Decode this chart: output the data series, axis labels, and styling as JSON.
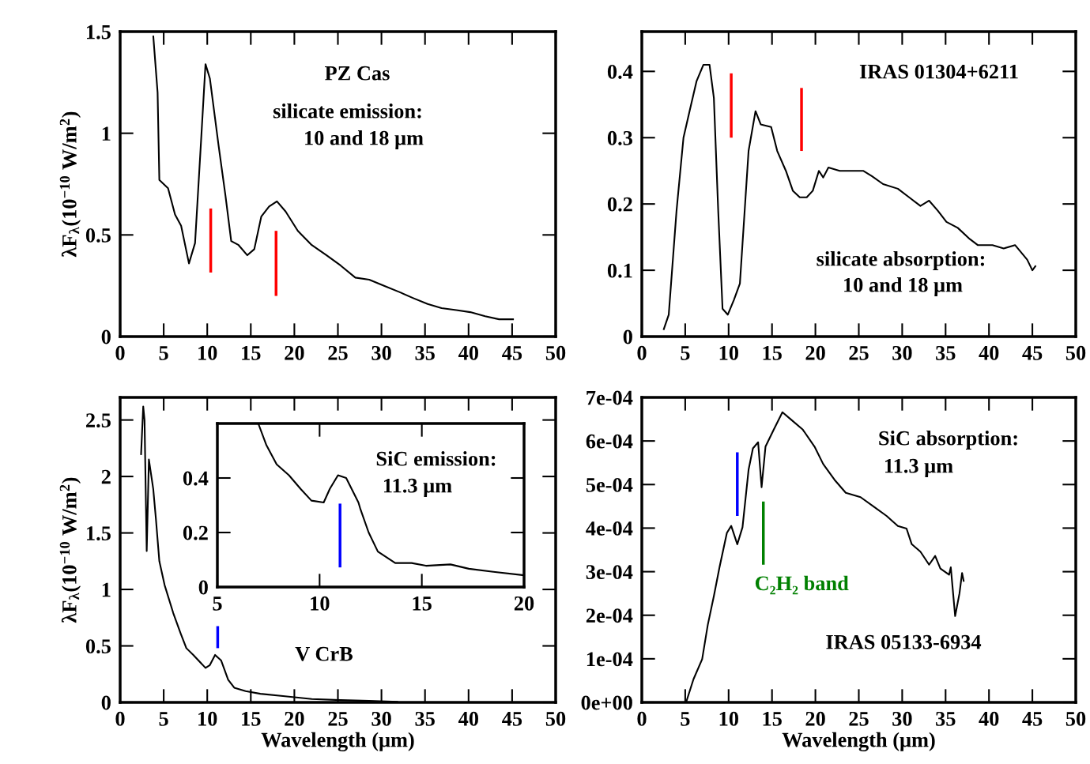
{
  "chart_data": [
    {
      "type": "line",
      "ylabel": "λF$_{λ}$(10$^{−10}$ W/m$^{2}$)",
      "xlim": [
        0,
        50
      ],
      "xticks": [
        0,
        5,
        10,
        15,
        20,
        25,
        30,
        35,
        40,
        45,
        50
      ],
      "ylim": [
        0,
        1.5
      ],
      "yticks": [
        0,
        0.5,
        1,
        1.5
      ],
      "annotations": [
        "PZ Cas",
        "silicate emission:",
        "10 and 18 μm"
      ],
      "series": [
        {
          "color": "#000000",
          "x": [
            3.8,
            4.3,
            4.5,
            5.5,
            6.3,
            7.0,
            7.9,
            8.6,
            9.3,
            9.8,
            10.3,
            11.3,
            12.1,
            12.75,
            13.6,
            14.6,
            15.4,
            16.2,
            17.1,
            18.0,
            19.0,
            20.4,
            22.0,
            23.7,
            25.3,
            27.0,
            28.6,
            30.3,
            32.0,
            33.6,
            35.3,
            36.9,
            38.6,
            40.2,
            41.9,
            43.5,
            45.2
          ],
          "values": [
            1.48,
            1.2,
            0.77,
            0.73,
            0.6,
            0.545,
            0.36,
            0.46,
            0.97,
            1.34,
            1.27,
            0.94,
            0.69,
            0.47,
            0.45,
            0.4,
            0.43,
            0.59,
            0.64,
            0.665,
            0.615,
            0.52,
            0.45,
            0.4,
            0.35,
            0.29,
            0.28,
            0.25,
            0.22,
            0.19,
            0.16,
            0.14,
            0.13,
            0.12,
            0.1,
            0.085,
            0.085
          ]
        },
        {
          "color": "#ff0000",
          "x": [
            10.4,
            10.4
          ],
          "values": [
            0.315,
            0.63
          ]
        },
        {
          "color": "#ff0000",
          "x": [
            17.9,
            17.9
          ],
          "values": [
            0.2,
            0.52
          ]
        }
      ]
    },
    {
      "type": "line",
      "xlim": [
        0,
        50
      ],
      "xticks": [
        0,
        5,
        10,
        15,
        20,
        25,
        30,
        35,
        40,
        45,
        50
      ],
      "ylim": [
        0,
        0.46
      ],
      "yticks": [
        0,
        0.1,
        0.2,
        0.3,
        0.4
      ],
      "annotations": [
        "IRAS 01304+6211",
        "silicate absorption:",
        "10 and 18 μm"
      ],
      "series": [
        {
          "color": "#000000",
          "x": [
            2.5,
            3.1,
            4.0,
            4.8,
            5.5,
            6.3,
            7.1,
            7.8,
            8.3,
            8.8,
            9.3,
            9.9,
            10.6,
            11.3,
            11.6,
            12.3,
            13.1,
            13.7,
            14.9,
            15.6,
            16.6,
            17.4,
            18.2,
            19.0,
            19.7,
            20.4,
            20.9,
            21.5,
            22.8,
            24.2,
            25.5,
            26.5,
            27.8,
            29.5,
            30.8,
            32.1,
            33.1,
            34.1,
            35.1,
            36.4,
            37.8,
            38.7,
            40.4,
            41.7,
            43.0,
            44.4,
            45.0,
            45.4
          ],
          "values": [
            0.01,
            0.033,
            0.19,
            0.3,
            0.34,
            0.385,
            0.41,
            0.41,
            0.36,
            0.19,
            0.042,
            0.033,
            0.055,
            0.08,
            0.14,
            0.28,
            0.34,
            0.32,
            0.316,
            0.28,
            0.25,
            0.22,
            0.21,
            0.21,
            0.22,
            0.25,
            0.24,
            0.255,
            0.25,
            0.25,
            0.25,
            0.242,
            0.23,
            0.223,
            0.21,
            0.197,
            0.205,
            0.19,
            0.173,
            0.164,
            0.147,
            0.138,
            0.138,
            0.133,
            0.138,
            0.116,
            0.1,
            0.107
          ]
        },
        {
          "color": "#ff0000",
          "x": [
            10.3,
            10.3
          ],
          "values": [
            0.3,
            0.397
          ]
        },
        {
          "color": "#ff0000",
          "x": [
            18.4,
            18.4
          ],
          "values": [
            0.28,
            0.375
          ]
        }
      ]
    },
    {
      "type": "line",
      "xlabel": "Wavelength (μm)",
      "ylabel": "λF$_{λ}$(10$^{−10}$ W/m$^{2}$)",
      "xlim": [
        0,
        50
      ],
      "xticks": [
        0,
        5,
        10,
        15,
        20,
        25,
        30,
        35,
        40,
        45,
        50
      ],
      "ylim": [
        0,
        2.7
      ],
      "yticks": [
        0,
        0.5,
        1,
        1.5,
        2,
        2.5
      ],
      "annotations": [
        "V CrB"
      ],
      "series": [
        {
          "color": "#000000",
          "x": [
            2.4,
            2.65,
            2.8,
            3.05,
            3.3,
            3.8,
            4.1,
            4.5,
            5.1,
            6.1,
            6.95,
            7.6,
            8.4,
            9.8,
            10.3,
            10.9,
            11.6,
            12.4,
            13.1,
            14.4,
            16.1,
            18.7,
            22.0,
            25.3,
            28.6,
            31.9
          ],
          "values": [
            2.19,
            2.62,
            2.5,
            1.34,
            2.15,
            1.89,
            1.63,
            1.25,
            1.04,
            0.79,
            0.61,
            0.48,
            0.42,
            0.305,
            0.33,
            0.42,
            0.37,
            0.2,
            0.13,
            0.1,
            0.076,
            0.056,
            0.03,
            0.02,
            0.013,
            0.005
          ]
        },
        {
          "color": "#0000ff",
          "x": [
            11.2,
            11.2
          ],
          "values": [
            0.48,
            0.675
          ]
        }
      ]
    },
    {
      "type": "line",
      "xlim": [
        5,
        20
      ],
      "xticks": [
        5,
        10,
        15,
        20
      ],
      "ylim": [
        0,
        0.6
      ],
      "yticks": [
        0,
        0.2,
        0.4
      ],
      "annotations": [
        "SiC emission:",
        "11.3 μm"
      ],
      "series": [
        {
          "color": "#000000",
          "x": [
            7.0,
            7.4,
            7.9,
            8.5,
            9.07,
            9.6,
            10.2,
            10.5,
            10.9,
            11.3,
            11.9,
            12.0,
            12.4,
            12.85,
            13.7,
            14.5,
            15.2,
            16.4,
            17.3,
            18.5,
            20.0
          ],
          "values": [
            0.6,
            0.52,
            0.45,
            0.41,
            0.36,
            0.317,
            0.31,
            0.36,
            0.41,
            0.4,
            0.31,
            0.285,
            0.2,
            0.13,
            0.088,
            0.088,
            0.078,
            0.083,
            0.067,
            0.056,
            0.043
          ]
        },
        {
          "color": "#0000ff",
          "x": [
            11.0,
            11.0
          ],
          "values": [
            0.072,
            0.306
          ]
        }
      ]
    },
    {
      "type": "line",
      "xlabel": "Wavelength (μm)",
      "xlim": [
        0,
        50
      ],
      "xticks": [
        0,
        5,
        10,
        15,
        20,
        25,
        30,
        35,
        40,
        45,
        50
      ],
      "ylim": [
        0,
        0.0007
      ],
      "yticks": [
        {
          "value": 0,
          "label": "0e+00"
        },
        {
          "value": 0.0001,
          "label": "1e-04"
        },
        {
          "value": 0.0002,
          "label": "2e-04"
        },
        {
          "value": 0.0003,
          "label": "3e-04"
        },
        {
          "value": 0.0004,
          "label": "4e-04"
        },
        {
          "value": 0.0005,
          "label": "5e-04"
        },
        {
          "value": 0.0006,
          "label": "6e-04"
        },
        {
          "value": 0.0007,
          "label": "7e-04"
        }
      ],
      "annotations": [
        "SiC absorption:",
        "11.3 μm",
        "IRAS 05133-6934"
      ],
      "series": [
        {
          "color": "#000000",
          "x": [
            5.1,
            5.95,
            6.95,
            7.6,
            8.3,
            8.95,
            9.8,
            10.3,
            11.0,
            11.6,
            12.3,
            12.8,
            13.4,
            13.8,
            14.25,
            15.2,
            16.2,
            17.2,
            18.55,
            19.9,
            20.9,
            22.2,
            23.5,
            25.2,
            26.8,
            28.2,
            29.5,
            30.5,
            31.1,
            32.1,
            33.1,
            33.8,
            34.4,
            35.4,
            35.6,
            36.1,
            36.6,
            36.9,
            37.1
          ],
          "values": [
            0.0,
            5.3e-05,
            9.9e-05,
            0.000178,
            0.000244,
            0.00031,
            0.000389,
            0.000405,
            0.000363,
            0.000402,
            0.000534,
            0.000583,
            0.000597,
            0.000494,
            0.000587,
            0.000626,
            0.000666,
            0.000649,
            0.000626,
            0.000587,
            0.000547,
            0.000511,
            0.000481,
            0.000471,
            0.000448,
            0.000428,
            0.000405,
            0.000399,
            0.000363,
            0.000346,
            0.000316,
            0.000336,
            0.000307,
            0.000293,
            0.00031,
            0.000198,
            0.00025,
            0.000297,
            0.000277
          ]
        },
        {
          "color": "#0000ff",
          "x": [
            11.0,
            11.0
          ],
          "values": [
            0.000428,
            0.000574
          ]
        },
        {
          "name": "C₂H₂ band",
          "color": "#008000",
          "x": [
            14.0,
            14.0
          ],
          "values": [
            0.000316,
            0.000461
          ]
        }
      ]
    }
  ]
}
